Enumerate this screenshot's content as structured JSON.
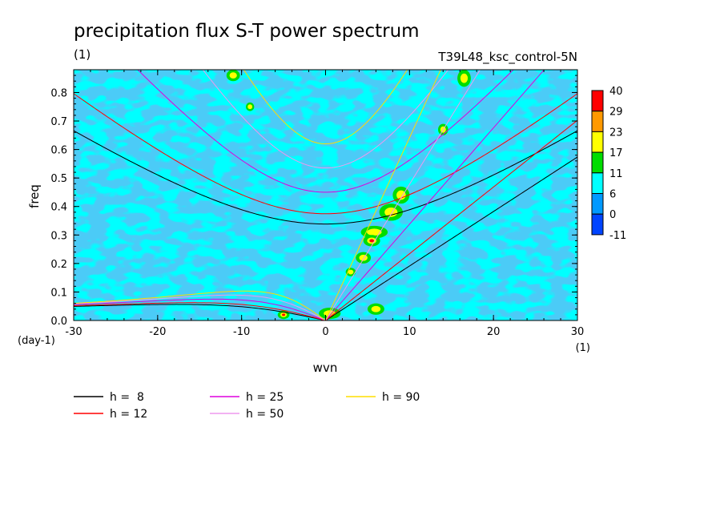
{
  "chart_data": {
    "type": "heatmap",
    "title": "precipitation flux S-T power spectrum",
    "subtitle_left": "(1)",
    "subtitle_right": "T39L48_ksc_control-5N",
    "xlabel": "wvn",
    "ylabel": "freq",
    "x_unit": "(1)",
    "y_unit": "(day-1)",
    "xlim": [
      -30,
      30
    ],
    "ylim": [
      0,
      0.88
    ],
    "x_ticks": [
      -30,
      -20,
      -10,
      0,
      10,
      20,
      30
    ],
    "x_tick_labels": [
      "-30",
      "-20",
      "-10",
      "0",
      "10",
      "20",
      "30"
    ],
    "y_ticks": [
      0,
      0.1,
      0.2,
      0.3,
      0.4,
      0.5,
      0.6,
      0.7,
      0.8
    ],
    "y_tick_labels": [
      "0.0",
      "0.1",
      "0.2",
      "0.3",
      "0.4",
      "0.5",
      "0.6",
      "0.7",
      "0.8"
    ],
    "colorbar": {
      "levels": [
        "40",
        "29",
        "23",
        "17",
        "11",
        "6",
        "0",
        "-11"
      ],
      "colors": [
        "#ff0000",
        "#ff9900",
        "#ffff00",
        "#00dd00",
        "#00ffff",
        "#0099ff",
        "#0044ff"
      ]
    },
    "field_colors": {
      "background": "#00ffff",
      "low": "#1199ee",
      "mid": "#00dd00",
      "high": "#ffff00",
      "peak": "#ff0000"
    },
    "field_blobs": [
      {
        "x": 5.8,
        "y": 0.31,
        "rx": 1.6,
        "ry": 0.022,
        "level": 3
      },
      {
        "x": 5.5,
        "y": 0.28,
        "rx": 1.0,
        "ry": 0.02,
        "level": 4
      },
      {
        "x": 7.8,
        "y": 0.38,
        "rx": 1.4,
        "ry": 0.03,
        "level": 3
      },
      {
        "x": 9.0,
        "y": 0.44,
        "rx": 1.0,
        "ry": 0.03,
        "level": 3
      },
      {
        "x": 4.5,
        "y": 0.22,
        "rx": 0.9,
        "ry": 0.02,
        "level": 3
      },
      {
        "x": 3.0,
        "y": 0.17,
        "rx": 0.6,
        "ry": 0.015,
        "level": 3
      },
      {
        "x": 6.0,
        "y": 0.04,
        "rx": 1.0,
        "ry": 0.02,
        "level": 3
      },
      {
        "x": -11.0,
        "y": 0.86,
        "rx": 0.8,
        "ry": 0.02,
        "level": 3
      },
      {
        "x": -5.0,
        "y": 0.02,
        "rx": 0.7,
        "ry": 0.015,
        "level": 4
      },
      {
        "x": 16.5,
        "y": 0.85,
        "rx": 0.8,
        "ry": 0.03,
        "level": 3
      },
      {
        "x": 14.0,
        "y": 0.67,
        "rx": 0.6,
        "ry": 0.02,
        "level": 3
      },
      {
        "x": 0.5,
        "y": 0.025,
        "rx": 1.3,
        "ry": 0.02,
        "level": 3
      },
      {
        "x": -9.0,
        "y": 0.75,
        "rx": 0.5,
        "ry": 0.015,
        "level": 3
      }
    ],
    "legend": {
      "placement": "bottom-left",
      "entries": [
        {
          "label": "h =  8",
          "color": "#000000"
        },
        {
          "label": "h = 12",
          "color": "#ff0000"
        },
        {
          "label": "h = 25",
          "color": "#dd00dd"
        },
        {
          "label": "h = 50",
          "color": "#ee99ee"
        },
        {
          "label": "h = 90",
          "color": "#ffdd00"
        }
      ]
    },
    "series": [
      {
        "name": "h =  8",
        "equivalent_depth": 8,
        "color": "#000000"
      },
      {
        "name": "h = 12",
        "equivalent_depth": 12,
        "color": "#ff0000"
      },
      {
        "name": "h = 25",
        "equivalent_depth": 25,
        "color": "#dd00dd"
      },
      {
        "name": "h = 50",
        "equivalent_depth": 50,
        "color": "#ee99ee"
      },
      {
        "name": "h = 90",
        "equivalent_depth": 90,
        "color": "#ffdd00"
      }
    ]
  }
}
